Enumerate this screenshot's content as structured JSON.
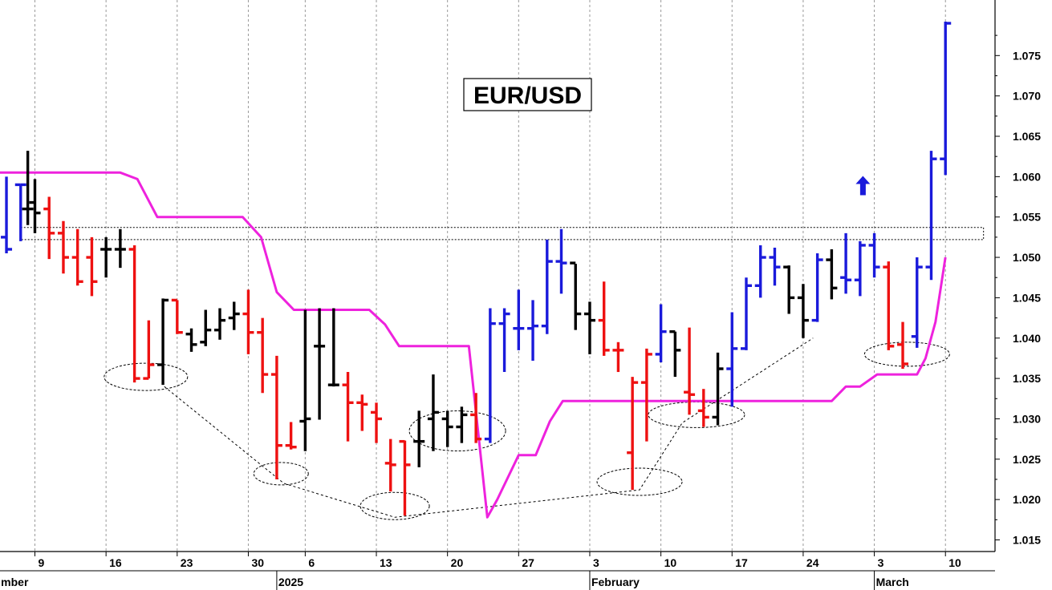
{
  "chart_data": {
    "type": "bar",
    "subtype": "ohlc",
    "title": "EUR/USD",
    "ylim": [
      1.0125,
      1.0815
    ],
    "y_ticks": [
      1.015,
      1.02,
      1.025,
      1.03,
      1.035,
      1.04,
      1.045,
      1.05,
      1.055,
      1.06,
      1.065,
      1.07,
      1.075
    ],
    "y_tick_labels": [
      "1.015",
      "1.020",
      "1.025",
      "1.030",
      "1.035",
      "1.040",
      "1.045",
      "1.050",
      "1.055",
      "1.060",
      "1.065",
      "1.070",
      "1.075"
    ],
    "x_tick_labels": [
      {
        "slot": 0,
        "label": "9"
      },
      {
        "slot": 5,
        "label": "16"
      },
      {
        "slot": 10,
        "label": "23"
      },
      {
        "slot": 15,
        "label": "30"
      },
      {
        "slot": 19,
        "label": "6"
      },
      {
        "slot": 24,
        "label": "13"
      },
      {
        "slot": 29,
        "label": "20"
      },
      {
        "slot": 34,
        "label": "27"
      },
      {
        "slot": 39,
        "label": "3"
      },
      {
        "slot": 44,
        "label": "10"
      },
      {
        "slot": 49,
        "label": "17"
      },
      {
        "slot": 54,
        "label": "24"
      },
      {
        "slot": 59,
        "label": "3"
      },
      {
        "slot": 64,
        "label": "10"
      }
    ],
    "period_labels": [
      {
        "slot": -2.5,
        "label": "mber"
      },
      {
        "slot": 17,
        "label": "2025"
      },
      {
        "slot": 39,
        "label": "February"
      },
      {
        "slot": 59,
        "label": "March"
      }
    ],
    "grid": true,
    "legend": "none",
    "colors": {
      "up": "#1a1adb",
      "down": "#ee1111",
      "neutral": "#000000",
      "line": "#ee22dd",
      "grid": "#9a9a9a"
    },
    "bars": [
      {
        "slot": -2,
        "open": 1.0525,
        "high": 1.06,
        "low": 1.0505,
        "close": 1.051,
        "color": "blue"
      },
      {
        "slot": -1,
        "open": 1.059,
        "high": 1.059,
        "low": 1.052,
        "close": 1.059,
        "color": "blue"
      },
      {
        "slot": -0.5,
        "open": 1.056,
        "high": 1.0632,
        "low": 1.054,
        "close": 1.056,
        "color": "black"
      },
      {
        "slot": 0,
        "open": 1.0568,
        "high": 1.0597,
        "low": 1.053,
        "close": 1.0555,
        "color": "black"
      },
      {
        "slot": 1,
        "open": 1.056,
        "high": 1.0575,
        "low": 1.0498,
        "close": 1.053,
        "color": "red"
      },
      {
        "slot": 2,
        "open": 1.053,
        "high": 1.0545,
        "low": 1.048,
        "close": 1.05,
        "color": "red"
      },
      {
        "slot": 3,
        "open": 1.05,
        "high": 1.0535,
        "low": 1.0465,
        "close": 1.047,
        "color": "red"
      },
      {
        "slot": 4,
        "open": 1.05,
        "high": 1.0525,
        "low": 1.0452,
        "close": 1.047,
        "color": "red"
      },
      {
        "slot": 5,
        "open": 1.051,
        "high": 1.0525,
        "low": 1.0475,
        "close": 1.051,
        "color": "black"
      },
      {
        "slot": 6,
        "open": 1.051,
        "high": 1.0535,
        "low": 1.0487,
        "close": 1.051,
        "color": "black"
      },
      {
        "slot": 7,
        "open": 1.051,
        "high": 1.0515,
        "low": 1.0345,
        "close": 1.035,
        "color": "red"
      },
      {
        "slot": 8,
        "open": 1.035,
        "high": 1.0422,
        "low": 1.035,
        "close": 1.0367,
        "color": "red"
      },
      {
        "slot": 9,
        "open": 1.0367,
        "high": 1.0449,
        "low": 1.0342,
        "close": 1.0447,
        "color": "black"
      },
      {
        "slot": 10,
        "open": 1.0447,
        "high": 1.0447,
        "low": 1.0405,
        "close": 1.0407,
        "color": "red"
      },
      {
        "slot": 11,
        "open": 1.0405,
        "high": 1.0412,
        "low": 1.0383,
        "close": 1.0392,
        "color": "black"
      },
      {
        "slot": 12,
        "open": 1.0395,
        "high": 1.0435,
        "low": 1.039,
        "close": 1.041,
        "color": "black"
      },
      {
        "slot": 13,
        "open": 1.041,
        "high": 1.0437,
        "low": 1.0398,
        "close": 1.0422,
        "color": "black"
      },
      {
        "slot": 14,
        "open": 1.0425,
        "high": 1.0445,
        "low": 1.041,
        "close": 1.043,
        "color": "black"
      },
      {
        "slot": 15,
        "open": 1.043,
        "high": 1.046,
        "low": 1.038,
        "close": 1.0407,
        "color": "red"
      },
      {
        "slot": 16,
        "open": 1.0407,
        "high": 1.0425,
        "low": 1.0332,
        "close": 1.0355,
        "color": "red"
      },
      {
        "slot": 17,
        "open": 1.0355,
        "high": 1.0378,
        "low": 1.0225,
        "close": 1.0267,
        "color": "red"
      },
      {
        "slot": 18,
        "open": 1.0267,
        "high": 1.0296,
        "low": 1.0262,
        "close": 1.0265,
        "color": "red"
      },
      {
        "slot": 19,
        "open": 1.0297,
        "high": 1.0435,
        "low": 1.026,
        "close": 1.03,
        "color": "black"
      },
      {
        "slot": 20,
        "open": 1.039,
        "high": 1.0437,
        "low": 1.0299,
        "close": 1.039,
        "color": "black"
      },
      {
        "slot": 21,
        "open": 1.0342,
        "high": 1.0437,
        "low": 1.034,
        "close": 1.0342,
        "color": "black"
      },
      {
        "slot": 22,
        "open": 1.0342,
        "high": 1.0358,
        "low": 1.0272,
        "close": 1.032,
        "color": "red"
      },
      {
        "slot": 23,
        "open": 1.032,
        "high": 1.033,
        "low": 1.0285,
        "close": 1.0318,
        "color": "red"
      },
      {
        "slot": 24,
        "open": 1.0308,
        "high": 1.032,
        "low": 1.027,
        "close": 1.03,
        "color": "red"
      },
      {
        "slot": 25,
        "open": 1.0245,
        "high": 1.0275,
        "low": 1.021,
        "close": 1.0243,
        "color": "red"
      },
      {
        "slot": 26,
        "open": 1.0272,
        "high": 1.0273,
        "low": 1.018,
        "close": 1.0243,
        "color": "red"
      },
      {
        "slot": 27,
        "open": 1.0272,
        "high": 1.031,
        "low": 1.024,
        "close": 1.0272,
        "color": "black"
      },
      {
        "slot": 28,
        "open": 1.03,
        "high": 1.0355,
        "low": 1.026,
        "close": 1.0308,
        "color": "black"
      },
      {
        "slot": 29,
        "open": 1.03,
        "high": 1.031,
        "low": 1.0265,
        "close": 1.029,
        "color": "black"
      },
      {
        "slot": 30,
        "open": 1.029,
        "high": 1.0315,
        "low": 1.027,
        "close": 1.0305,
        "color": "black"
      },
      {
        "slot": 31,
        "open": 1.0305,
        "high": 1.0332,
        "low": 1.027,
        "close": 1.0275,
        "color": "red"
      },
      {
        "slot": 32,
        "open": 1.0275,
        "high": 1.0437,
        "low": 1.027,
        "close": 1.0418,
        "color": "blue"
      },
      {
        "slot": 33,
        "open": 1.0418,
        "high": 1.0437,
        "low": 1.0358,
        "close": 1.043,
        "color": "blue"
      },
      {
        "slot": 34,
        "open": 1.0412,
        "high": 1.046,
        "low": 1.0385,
        "close": 1.0412,
        "color": "blue"
      },
      {
        "slot": 35,
        "open": 1.0412,
        "high": 1.0447,
        "low": 1.0372,
        "close": 1.0415,
        "color": "blue"
      },
      {
        "slot": 36,
        "open": 1.0415,
        "high": 1.0522,
        "low": 1.0405,
        "close": 1.0495,
        "color": "blue"
      },
      {
        "slot": 37,
        "open": 1.0495,
        "high": 1.0535,
        "low": 1.0455,
        "close": 1.0493,
        "color": "blue"
      },
      {
        "slot": 38,
        "open": 1.0493,
        "high": 1.0492,
        "low": 1.041,
        "close": 1.043,
        "color": "black"
      },
      {
        "slot": 39,
        "open": 1.043,
        "high": 1.0445,
        "low": 1.038,
        "close": 1.0422,
        "color": "black"
      },
      {
        "slot": 40,
        "open": 1.0422,
        "high": 1.047,
        "low": 1.0378,
        "close": 1.0385,
        "color": "red"
      },
      {
        "slot": 41,
        "open": 1.0385,
        "high": 1.0395,
        "low": 1.0358,
        "close": 1.0385,
        "color": "red"
      },
      {
        "slot": 42,
        "open": 1.0258,
        "high": 1.0352,
        "low": 1.0212,
        "close": 1.0345,
        "color": "red"
      },
      {
        "slot": 43,
        "open": 1.0345,
        "high": 1.0387,
        "low": 1.0272,
        "close": 1.038,
        "color": "red"
      },
      {
        "slot": 44,
        "open": 1.038,
        "high": 1.0442,
        "low": 1.037,
        "close": 1.0408,
        "color": "blue"
      },
      {
        "slot": 45,
        "open": 1.0408,
        "high": 1.0408,
        "low": 1.0352,
        "close": 1.0385,
        "color": "black"
      },
      {
        "slot": 46,
        "open": 1.0333,
        "high": 1.0413,
        "low": 1.0305,
        "close": 1.033,
        "color": "red"
      },
      {
        "slot": 47,
        "open": 1.031,
        "high": 1.0337,
        "low": 1.029,
        "close": 1.0302,
        "color": "red"
      },
      {
        "slot": 48,
        "open": 1.0302,
        "high": 1.0382,
        "low": 1.0292,
        "close": 1.0362,
        "color": "black"
      },
      {
        "slot": 49,
        "open": 1.0362,
        "high": 1.0432,
        "low": 1.0315,
        "close": 1.0387,
        "color": "blue"
      },
      {
        "slot": 50,
        "open": 1.0387,
        "high": 1.0475,
        "low": 1.0385,
        "close": 1.0465,
        "color": "blue"
      },
      {
        "slot": 51,
        "open": 1.0465,
        "high": 1.0515,
        "low": 1.045,
        "close": 1.05,
        "color": "blue"
      },
      {
        "slot": 52,
        "open": 1.05,
        "high": 1.0512,
        "low": 1.0465,
        "close": 1.0488,
        "color": "blue"
      },
      {
        "slot": 53,
        "open": 1.0488,
        "high": 1.049,
        "low": 1.043,
        "close": 1.045,
        "color": "black"
      },
      {
        "slot": 54,
        "open": 1.045,
        "high": 1.0467,
        "low": 1.04,
        "close": 1.0422,
        "color": "black"
      },
      {
        "slot": 55,
        "open": 1.0422,
        "high": 1.0505,
        "low": 1.042,
        "close": 1.0497,
        "color": "blue"
      },
      {
        "slot": 56,
        "open": 1.0497,
        "high": 1.051,
        "low": 1.0448,
        "close": 1.0462,
        "color": "black"
      },
      {
        "slot": 57,
        "open": 1.0475,
        "high": 1.053,
        "low": 1.0455,
        "close": 1.0472,
        "color": "blue"
      },
      {
        "slot": 58,
        "open": 1.0472,
        "high": 1.052,
        "low": 1.0452,
        "close": 1.0515,
        "color": "blue"
      },
      {
        "slot": 59,
        "open": 1.0515,
        "high": 1.053,
        "low": 1.0475,
        "close": 1.0488,
        "color": "blue"
      },
      {
        "slot": 60,
        "open": 1.0488,
        "high": 1.0495,
        "low": 1.0385,
        "close": 1.039,
        "color": "red"
      },
      {
        "slot": 61,
        "open": 1.0392,
        "high": 1.042,
        "low": 1.0362,
        "close": 1.0368,
        "color": "red"
      },
      {
        "slot": 62,
        "open": 1.0402,
        "high": 1.05,
        "low": 1.0388,
        "close": 1.0488,
        "color": "blue"
      },
      {
        "slot": 63,
        "open": 1.0488,
        "high": 1.0632,
        "low": 1.0472,
        "close": 1.0622,
        "color": "blue"
      },
      {
        "slot": 64,
        "open": 1.0622,
        "high": 1.0792,
        "low": 1.0602,
        "close": 1.079,
        "color": "blue"
      }
    ],
    "stop_line": [
      [
        -2.5,
        1.0605
      ],
      [
        6,
        1.0605
      ],
      [
        7.2,
        1.0597
      ],
      [
        8.6,
        1.055
      ],
      [
        14.6,
        1.055
      ],
      [
        15.9,
        1.0525
      ],
      [
        17,
        1.0457
      ],
      [
        18.2,
        1.0435
      ],
      [
        23.5,
        1.0435
      ],
      [
        24.6,
        1.0417
      ],
      [
        25.6,
        1.039
      ],
      [
        30.5,
        1.039
      ],
      [
        31.8,
        1.0178
      ],
      [
        32.5,
        1.02
      ],
      [
        34,
        1.0255
      ],
      [
        35.2,
        1.0255
      ],
      [
        36.2,
        1.0297
      ],
      [
        37.1,
        1.0322
      ],
      [
        56,
        1.0322
      ],
      [
        57,
        1.034
      ],
      [
        58,
        1.034
      ],
      [
        59.2,
        1.0355
      ],
      [
        62,
        1.0355
      ],
      [
        62.6,
        1.0375
      ],
      [
        63.3,
        1.042
      ],
      [
        64,
        1.05
      ]
    ],
    "resistance_zone": {
      "from_slot": -1,
      "to_slot": 66,
      "low": 1.0522,
      "high": 1.0537
    },
    "ellipses": [
      {
        "slot": 7.8,
        "price": 1.0352,
        "rx": 52,
        "ry": 17
      },
      {
        "slot": 17.3,
        "price": 1.0232,
        "rx": 34,
        "ry": 14
      },
      {
        "slot": 25.3,
        "price": 1.0192,
        "rx": 43,
        "ry": 17
      },
      {
        "slot": 29.7,
        "price": 1.0285,
        "rx": 60,
        "ry": 25
      },
      {
        "slot": 42.5,
        "price": 1.0222,
        "rx": 53,
        "ry": 17
      },
      {
        "slot": 46.5,
        "price": 1.0305,
        "rx": 60,
        "ry": 16
      },
      {
        "slot": 61.3,
        "price": 1.038,
        "rx": 53,
        "ry": 15
      }
    ],
    "trendlines": [
      [
        [
          9.1,
          1.034
        ],
        [
          17.5,
          1.022
        ],
        [
          25.3,
          1.0178
        ],
        [
          42.5,
          1.0212
        ],
        [
          45.5,
          1.0295
        ],
        [
          54.7,
          1.04
        ]
      ]
    ],
    "arrow": {
      "slot": 58.2,
      "price": 1.0587,
      "direction": "up"
    }
  }
}
